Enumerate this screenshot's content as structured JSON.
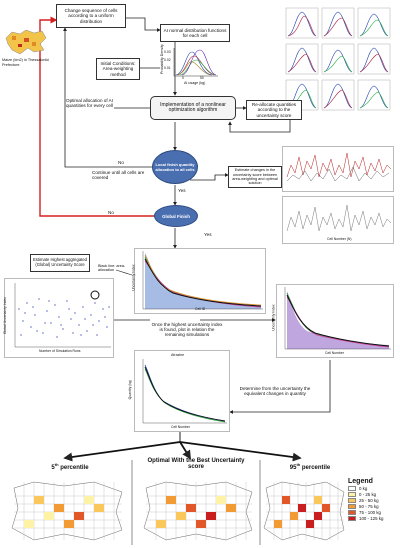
{
  "flow": {
    "change_sequence": "Change sequence of cells according to a uniform distribution",
    "maize_label": "Maize (km2) in Thessaloniki Prefecture",
    "ai_normal": "AI normal distribution functions for each cell",
    "initial_conditions": "Initial Conditions: Area-weighting method",
    "prob_axis": "Probability Density",
    "prob_ticks": [
      "0.03",
      "0.02",
      "0.01"
    ],
    "ai_axis_ticks": [
      "0",
      "50"
    ],
    "ai_axis_label": "AI usage (kg)",
    "optimal_allocation": "Optimal allocation of AI quantities for every cell",
    "implementation": "Implementation of a nonlinear optimization algorithm",
    "reallocate": "Re-allocate quantities according to the uncertainty score",
    "local_finish": "Local finish quantity allocation to all cells",
    "no_label_1": "No",
    "continue_label": "Continue until all cells are covered",
    "yes_label_1": "Yes",
    "estimate_changes": "Estimate changes in the uncertainty score between area-weighting and optimal solution",
    "no_label_2": "No",
    "global_finish": "Global Finish",
    "yes_label_2": "Yes",
    "estimate_highest": "Estimate Highest aggregated (Global) Uncertainty Score",
    "black_line": "Black line: area-allocation",
    "once_highest": "Once the highest uncertainty index is found, plot in relation the remaining simulations",
    "determine": "Determine from the uncertainty the equivalent changes in quantity"
  },
  "plots": {
    "scatter_xlabel": "Number of Simulation Runs",
    "scatter_ylabel": "Global Uncertainty Index",
    "unc_xlabel": "Cell ID",
    "unc_ylabel": "Uncertainty Index",
    "right_xlabel": "Cell Number",
    "right_ylabel": "Uncertainty Index",
    "bottom_title": "Atrazine",
    "bottom_xlabel": "Cell Number",
    "bottom_ylabel": "Quantity (kg)",
    "cell_number_label": "Cell Number (N)"
  },
  "maps": {
    "p5": "5th percentile",
    "optimal": "Optimal With the Best Uncertainty score",
    "p95": "95th percentile"
  },
  "legend": {
    "title": "Legend",
    "items": [
      {
        "label": "0 kg",
        "color": "#ffffff"
      },
      {
        "label": "0 - 25 kg",
        "color": "#fdf2a6"
      },
      {
        "label": "25 - 50 kg",
        "color": "#f9c75c"
      },
      {
        "label": "50 - 75 kg",
        "color": "#f29a34"
      },
      {
        "label": "75 - 100 kg",
        "color": "#e2572a"
      },
      {
        "label": "100 - 125 kg",
        "color": "#c91e1e"
      }
    ]
  },
  "colors": {
    "accent_red": "#d42020",
    "oval_blue": "#4a6fb0"
  }
}
